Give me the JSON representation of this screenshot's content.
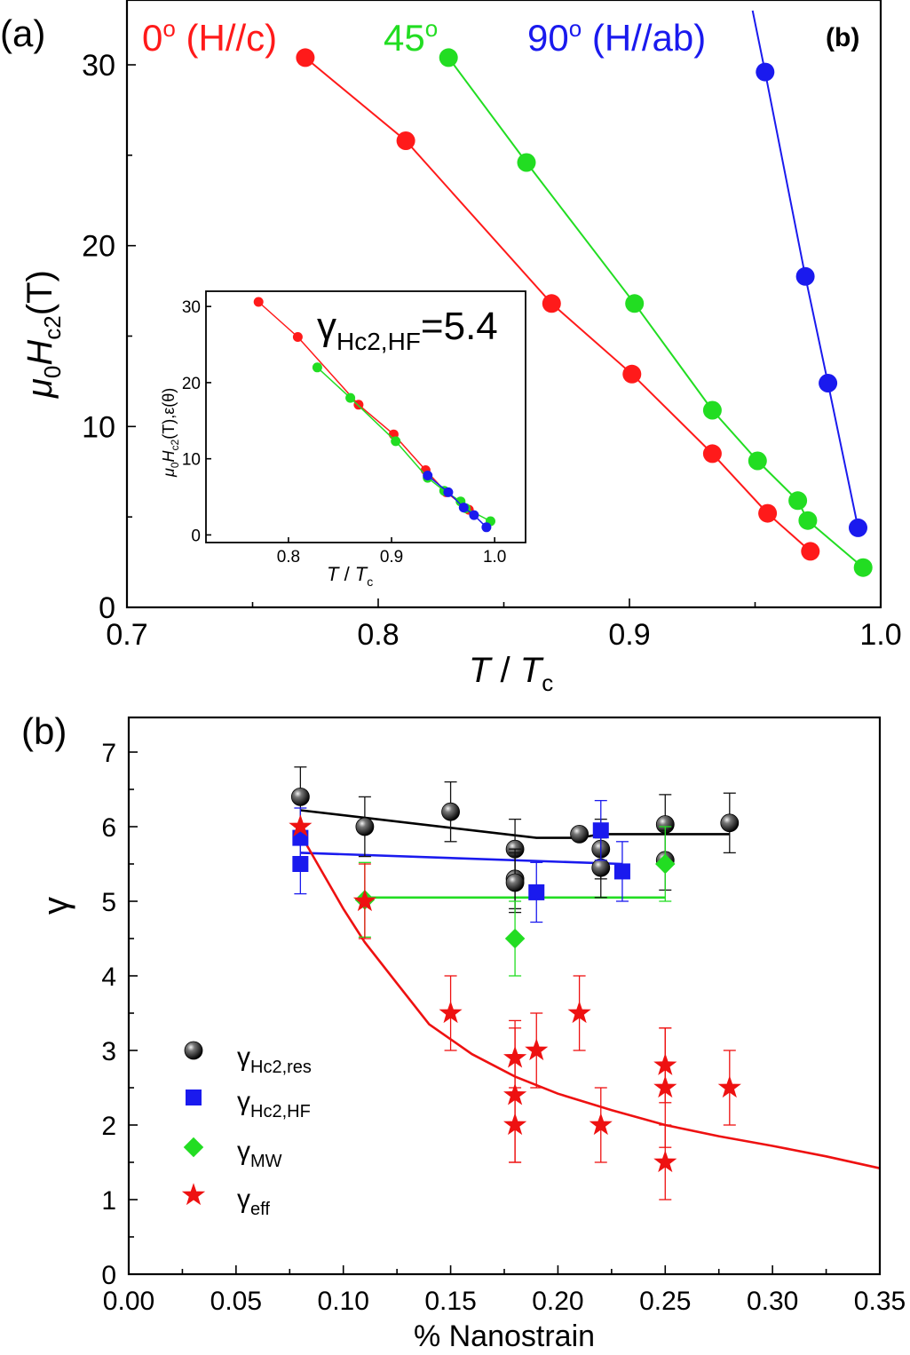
{
  "chart_data": [
    {
      "type": "scatter",
      "panel_label": "(a)",
      "corner_label": "(b)",
      "xlabel_main": "T",
      "xlabel_sep": " / ",
      "xlabel_sub_base": "T",
      "xlabel_sub": "c",
      "ylabel_main": "μ",
      "ylabel_sub0": "0",
      "ylabel_h": "H",
      "ylabel_sub": "c2",
      "ylabel_unit": "(T)",
      "xlim": [
        0.7,
        1.0
      ],
      "ylim": [
        0,
        30
      ],
      "x_ticks": [
        "0.7",
        "0.8",
        "0.9",
        "1.0"
      ],
      "x_tick_values": [
        0.7,
        0.8,
        0.9,
        1.0
      ],
      "y_ticks": [
        "0",
        "10",
        "20",
        "30"
      ],
      "y_tick_values": [
        0,
        10,
        20,
        30
      ],
      "series": [
        {
          "name": "0º (H//c)",
          "legend_angle": "0",
          "legend_deg": "o",
          "legend_rest": " (H//c)",
          "color": "#ff1a1a",
          "x": [
            0.771,
            0.811,
            0.869,
            0.901,
            0.933,
            0.955,
            0.972
          ],
          "y": [
            30.4,
            25.8,
            16.8,
            12.9,
            8.5,
            5.2,
            3.1
          ]
        },
        {
          "name": "45º",
          "legend_angle": "45",
          "legend_deg": "o",
          "legend_rest": "",
          "color": "#22dd22",
          "x": [
            0.828,
            0.859,
            0.902,
            0.933,
            0.951,
            0.967,
            0.971,
            0.993
          ],
          "y": [
            30.4,
            24.6,
            16.8,
            10.9,
            8.1,
            5.9,
            4.8,
            2.2
          ]
        },
        {
          "name": "90º (H//ab)",
          "legend_angle": "90",
          "legend_deg": "o",
          "legend_rest": " (H//ab)",
          "color": "#1a1aee",
          "x": [
            0.954,
            0.97,
            0.979,
            0.991
          ],
          "y": [
            29.6,
            18.3,
            12.4,
            4.4
          ],
          "line_top": [
            0.949,
            33.0
          ]
        }
      ],
      "inset": {
        "xlabel_main": "T",
        "xlabel_sep": " / ",
        "xlabel_sub_base": "T",
        "xlabel_sub": "c",
        "ylabel_main": "μ",
        "ylabel_sub0": "0",
        "ylabel_h": "H",
        "ylabel_sub": "c2",
        "ylabel_unit": "(T),ε(θ)",
        "annotation_gamma": "γ",
        "annotation_sub": "Hc2,HF",
        "annotation_value": "=5.4",
        "xlim": [
          0.72,
          1.03
        ],
        "ylim": [
          -1,
          32
        ],
        "x_ticks": [
          "0.8",
          "0.9",
          "1.0"
        ],
        "x_tick_values": [
          0.8,
          0.9,
          1.0
        ],
        "y_ticks": [
          "0",
          "10",
          "20",
          "30"
        ],
        "y_tick_values": [
          0,
          10,
          20,
          30
        ],
        "series": [
          {
            "name": "0º (H//c)",
            "color": "#ff1a1a",
            "x": [
              0.771,
              0.809,
              0.868,
              0.902,
              0.933,
              0.953,
              0.975
            ],
            "y": [
              30.6,
              26.0,
              17.1,
              13.2,
              8.5,
              5.6,
              3.3
            ]
          },
          {
            "name": "45º",
            "color": "#22dd22",
            "x": [
              0.828,
              0.86,
              0.904,
              0.935,
              0.951,
              0.967,
              0.972,
              0.996
            ],
            "y": [
              22.0,
              18.0,
              12.3,
              7.5,
              5.8,
              4.4,
              3.5,
              1.8
            ]
          },
          {
            "name": "90º (H//ab)",
            "color": "#1a1aee",
            "x": [
              0.935,
              0.955,
              0.97,
              0.98,
              0.992
            ],
            "y": [
              7.8,
              5.6,
              3.6,
              2.6,
              1.0
            ]
          }
        ]
      }
    },
    {
      "type": "scatter",
      "panel_label": "(b)",
      "xlabel": "% Nanostrain",
      "ylabel": "γ",
      "xlim": [
        0,
        0.35
      ],
      "ylim": [
        0,
        7.5
      ],
      "x_ticks": [
        "0.00",
        "0.05",
        "0.10",
        "0.15",
        "0.20",
        "0.25",
        "0.30",
        "0.35"
      ],
      "x_tick_values": [
        0,
        0.05,
        0.1,
        0.15,
        0.2,
        0.25,
        0.3,
        0.35
      ],
      "y_ticks": [
        "0",
        "1",
        "2",
        "3",
        "4",
        "5",
        "6",
        "7"
      ],
      "y_tick_values": [
        0,
        1,
        2,
        3,
        4,
        5,
        6,
        7
      ],
      "legend_position": "lower-left",
      "series": [
        {
          "name": "γHc2,res",
          "legend_gamma": "γ",
          "legend_sub": "Hc2,res",
          "marker": "sphere",
          "color": "#111111",
          "x": [
            0.08,
            0.11,
            0.15,
            0.18,
            0.18,
            0.18,
            0.21,
            0.22,
            0.22,
            0.25,
            0.25,
            0.28
          ],
          "y": [
            6.4,
            6.0,
            6.2,
            5.7,
            5.3,
            5.25,
            5.9,
            5.7,
            5.45,
            6.03,
            5.55,
            6.05
          ],
          "err": [
            0.4,
            0.4,
            0.4,
            0.4,
            0.4,
            0.4,
            0.0,
            0.4,
            0.4,
            0.4,
            0.4,
            0.4
          ],
          "fit_x": [
            0.08,
            0.19,
            0.21,
            0.22,
            0.28
          ],
          "fit_y": [
            6.22,
            5.85,
            5.85,
            5.9,
            5.9
          ]
        },
        {
          "name": "γHc2,HF",
          "legend_gamma": "γ",
          "legend_sub": "Hc2,HF",
          "marker": "square",
          "color": "#1a1aee",
          "x": [
            0.08,
            0.08,
            0.19,
            0.22,
            0.23
          ],
          "y": [
            5.85,
            5.5,
            5.12,
            5.95,
            5.4
          ],
          "err": [
            0.4,
            0.4,
            0.4,
            0.4,
            0.4
          ],
          "fit_x": [
            0.08,
            0.23
          ],
          "fit_y": [
            5.65,
            5.5
          ]
        },
        {
          "name": "γMW",
          "legend_gamma": "γ",
          "legend_sub": "MW",
          "marker": "diamond",
          "color": "#22dd22",
          "x": [
            0.11,
            0.18,
            0.25
          ],
          "y": [
            5.02,
            4.5,
            5.5
          ],
          "err": [
            0.5,
            0.5,
            0.5
          ],
          "fit_x": [
            0.11,
            0.25
          ],
          "fit_y": [
            5.05,
            5.05
          ]
        },
        {
          "name": "γeff",
          "legend_gamma": "γ",
          "legend_sub": "eff",
          "marker": "star",
          "color": "#ee1111",
          "x": [
            0.08,
            0.11,
            0.15,
            0.18,
            0.18,
            0.18,
            0.19,
            0.21,
            0.22,
            0.25,
            0.25,
            0.25,
            0.28
          ],
          "y": [
            6.0,
            5.0,
            3.5,
            2.9,
            2.4,
            2.0,
            3.0,
            3.5,
            2.0,
            2.8,
            2.5,
            1.5,
            2.5
          ],
          "err": [
            0.0,
            0.5,
            0.5,
            0.5,
            0.9,
            0.5,
            0.5,
            0.5,
            0.5,
            0.5,
            0.8,
            0.5,
            0.5
          ],
          "fit_x": [
            0.08,
            0.09,
            0.1,
            0.11,
            0.125,
            0.14,
            0.16,
            0.18,
            0.2,
            0.225,
            0.25,
            0.275,
            0.3,
            0.325,
            0.35
          ],
          "fit_y": [
            5.9,
            5.4,
            4.9,
            4.45,
            3.9,
            3.35,
            2.95,
            2.65,
            2.42,
            2.2,
            2.0,
            1.85,
            1.72,
            1.58,
            1.42
          ]
        }
      ]
    }
  ]
}
